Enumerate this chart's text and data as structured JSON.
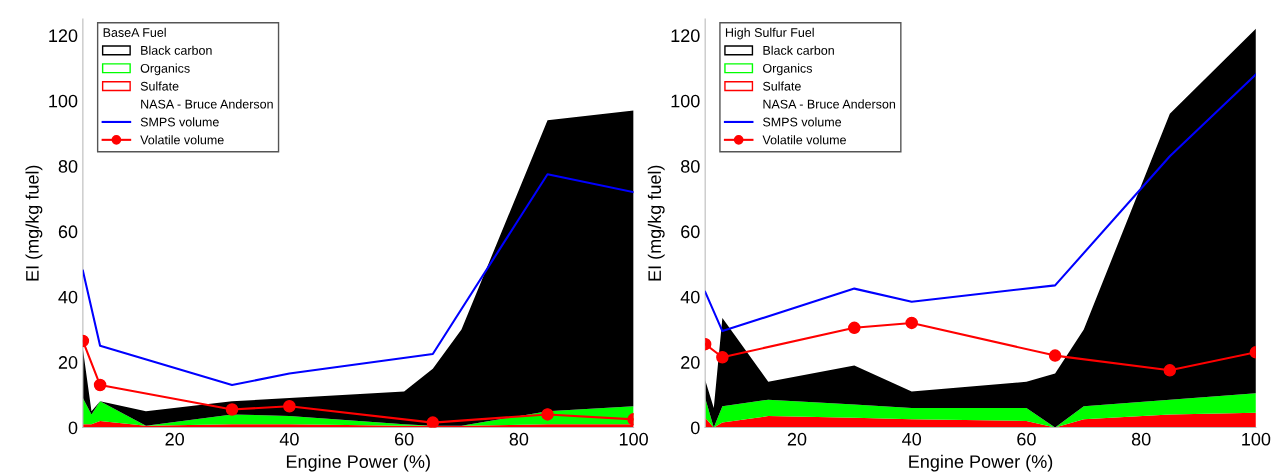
{
  "chart_data": [
    {
      "type": "area",
      "stacked": true,
      "legend_title": "BaseA Fuel",
      "annotations": [
        "NASA - Bruce Anderson"
      ],
      "xlabel": "Engine Power (%)",
      "ylabel": "EI (mg/kg fuel)",
      "xlim": [
        4,
        100
      ],
      "ylim": [
        0,
        125
      ],
      "xticks": [
        20,
        40,
        60,
        80,
        100
      ],
      "yticks": [
        0,
        20,
        40,
        60,
        80,
        100,
        120
      ],
      "legend": "top left",
      "series": [
        {
          "name": "Sulfate",
          "color": "#ff0000",
          "x": [
            4,
            5.5,
            7,
            15,
            30,
            40,
            60,
            65,
            70,
            85,
            100
          ],
          "values": [
            1,
            1,
            2,
            0.5,
            1,
            1,
            0.5,
            0.5,
            0.5,
            1,
            1
          ]
        },
        {
          "name": "Organics",
          "color": "#00ff00",
          "x": [
            4,
            5.5,
            7,
            15,
            30,
            40,
            60,
            65,
            70,
            85,
            100
          ],
          "values": [
            8,
            3,
            6,
            0,
            3,
            2.5,
            0.5,
            0,
            0,
            4,
            5.5
          ]
        },
        {
          "name": "Black carbon",
          "color": "#000000",
          "x": [
            4,
            5.5,
            7,
            15,
            30,
            40,
            60,
            65,
            70,
            85,
            100
          ],
          "values": [
            15,
            1,
            0,
            4.5,
            4,
            5.5,
            10,
            17.5,
            29.5,
            89,
            90.5
          ]
        },
        {
          "name": "SMPS volume",
          "type": "line",
          "color": "#0000ff",
          "marker": "none",
          "x": [
            4,
            7,
            30,
            40,
            65,
            85,
            100
          ],
          "values": [
            48,
            25,
            13,
            16.5,
            22.5,
            77.5,
            72
          ]
        },
        {
          "name": "Volatile volume",
          "type": "line",
          "color": "#ff0000",
          "marker": "circle",
          "x": [
            4,
            7,
            30,
            40,
            65,
            85,
            100
          ],
          "values": [
            26.5,
            13,
            5.5,
            6.5,
            1.5,
            4,
            2.5
          ]
        }
      ]
    },
    {
      "type": "area",
      "stacked": true,
      "legend_title": "High Sulfur Fuel",
      "annotations": [
        "NASA - Bruce Anderson"
      ],
      "xlabel": "Engine Power (%)",
      "ylabel": "EI (mg/kg fuel)",
      "xlim": [
        4,
        100
      ],
      "ylim": [
        0,
        125
      ],
      "xticks": [
        20,
        40,
        60,
        80,
        100
      ],
      "yticks": [
        0,
        20,
        40,
        60,
        80,
        100,
        120
      ],
      "legend": "top left",
      "series": [
        {
          "name": "Sulfate",
          "color": "#ff0000",
          "x": [
            4,
            5.5,
            7,
            15,
            30,
            40,
            60,
            65,
            70,
            85,
            100
          ],
          "values": [
            3,
            0,
            1.5,
            3.5,
            3,
            2.5,
            2,
            0,
            2.5,
            4,
            4.5
          ]
        },
        {
          "name": "Organics",
          "color": "#00ff00",
          "x": [
            4,
            5.5,
            7,
            15,
            30,
            40,
            60,
            65,
            70,
            85,
            100
          ],
          "values": [
            6,
            0,
            5,
            5,
            4,
            3.5,
            4,
            0,
            4,
            4.5,
            6
          ]
        },
        {
          "name": "Black carbon",
          "color": "#000000",
          "x": [
            4,
            5.5,
            7,
            15,
            30,
            40,
            60,
            65,
            70,
            85,
            100
          ],
          "values": [
            5.5,
            6,
            27,
            5.5,
            12,
            5,
            8,
            16.5,
            23.5,
            87.5,
            111.5
          ]
        },
        {
          "name": "SMPS volume",
          "type": "line",
          "color": "#0000ff",
          "marker": "none",
          "x": [
            4,
            7,
            30,
            40,
            65,
            85,
            100
          ],
          "values": [
            41.5,
            29.5,
            42.5,
            38.5,
            43.5,
            83,
            108
          ]
        },
        {
          "name": "Volatile volume",
          "type": "line",
          "color": "#ff0000",
          "marker": "circle",
          "x": [
            4,
            7,
            30,
            40,
            65,
            85,
            100
          ],
          "values": [
            25.5,
            21.5,
            30.5,
            32,
            22,
            17.5,
            23
          ]
        }
      ]
    }
  ]
}
